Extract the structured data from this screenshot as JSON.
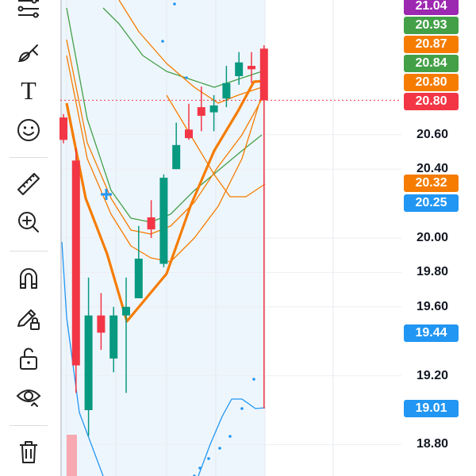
{
  "toolbar": {
    "tools": [
      {
        "name": "trend-line-tool",
        "icon": "trend-line-icon"
      },
      {
        "name": "brush-tool",
        "icon": "brush-icon"
      },
      {
        "name": "text-tool",
        "icon": "text-icon",
        "glyph": "T"
      },
      {
        "name": "emoji-tool",
        "icon": "smiley-icon"
      },
      {
        "name": "ruler-tool",
        "icon": "ruler-icon"
      },
      {
        "name": "zoom-tool",
        "icon": "zoom-in-icon"
      },
      {
        "name": "magnet-tool",
        "icon": "magnet-icon"
      },
      {
        "name": "lock-drawings-tool",
        "icon": "pencil-lock-icon"
      },
      {
        "name": "lock-tool",
        "icon": "unlock-icon"
      },
      {
        "name": "visibility-tool",
        "icon": "eye-icon"
      },
      {
        "name": "delete-tool",
        "icon": "trash-icon"
      }
    ]
  },
  "price_axis": {
    "ticks": [
      {
        "label": "20.60",
        "value": 20.6
      },
      {
        "label": "20.40",
        "value": 20.4
      },
      {
        "label": "20.00",
        "value": 20.0
      },
      {
        "label": "19.80",
        "value": 19.8
      },
      {
        "label": "19.60",
        "value": 19.6
      },
      {
        "label": "19.20",
        "value": 19.2
      },
      {
        "label": "18.80",
        "value": 18.8
      }
    ]
  },
  "price_labels": [
    {
      "label": "21.04",
      "value": 21.04,
      "color": "#9c27b0"
    },
    {
      "label": "20.93",
      "value": 20.93,
      "color": "#43a047"
    },
    {
      "label": "20.87",
      "value": 20.87,
      "color": "#f57c00"
    },
    {
      "label": "20.84",
      "value": 20.84,
      "color": "#43a047"
    },
    {
      "label": "20.80",
      "value": 20.8,
      "color": "#f57c00"
    },
    {
      "label": "20.80",
      "value": 20.8,
      "color": "#f23645"
    },
    {
      "label": "20.32",
      "value": 20.32,
      "color": "#f57c00"
    },
    {
      "label": "20.25",
      "value": 20.25,
      "color": "#2196f3"
    },
    {
      "label": "19.44",
      "value": 19.44,
      "color": "#2196f3"
    },
    {
      "label": "19.01",
      "value": 19.01,
      "color": "#2196f3"
    }
  ],
  "chart_data": {
    "type": "candlestick",
    "ylim": [
      18.7,
      21.06
    ],
    "up_color": "#089981",
    "down_color": "#f23645",
    "candles": [
      {
        "open": 20.7,
        "high": 20.72,
        "close": 20.57,
        "low": 20.55
      },
      {
        "open": 20.45,
        "high": 20.52,
        "close": 19.26,
        "low": 19.1
      },
      {
        "open": 19.0,
        "high": 19.77,
        "close": 19.55,
        "low": 18.85
      },
      {
        "open": 19.55,
        "high": 19.68,
        "close": 19.45,
        "low": 19.35
      },
      {
        "open": 19.3,
        "high": 19.6,
        "close": 19.55,
        "low": 19.22
      },
      {
        "open": 19.55,
        "high": 19.77,
        "close": 19.6,
        "low": 19.1
      },
      {
        "open": 19.65,
        "high": 20.07,
        "close": 19.88,
        "low": 19.65
      },
      {
        "open": 20.12,
        "high": 20.22,
        "close": 20.05,
        "low": 20.0
      },
      {
        "open": 19.85,
        "high": 20.37,
        "close": 20.35,
        "low": 19.83
      },
      {
        "open": 20.4,
        "high": 20.67,
        "close": 20.54,
        "low": 20.4
      },
      {
        "open": 20.63,
        "high": 20.78,
        "close": 20.58,
        "low": 20.57
      },
      {
        "open": 20.76,
        "high": 20.88,
        "close": 20.71,
        "low": 20.62
      },
      {
        "open": 20.73,
        "high": 20.83,
        "close": 20.77,
        "low": 20.62
      },
      {
        "open": 20.81,
        "high": 21.0,
        "close": 20.9,
        "low": 20.76
      },
      {
        "open": 20.94,
        "high": 21.08,
        "close": 21.02,
        "low": 20.89
      },
      {
        "open": 21.0,
        "high": 21.08,
        "close": 20.98,
        "low": 20.9
      },
      {
        "open": 21.1,
        "high": 21.12,
        "close": 20.8,
        "low": 19.01
      }
    ]
  }
}
